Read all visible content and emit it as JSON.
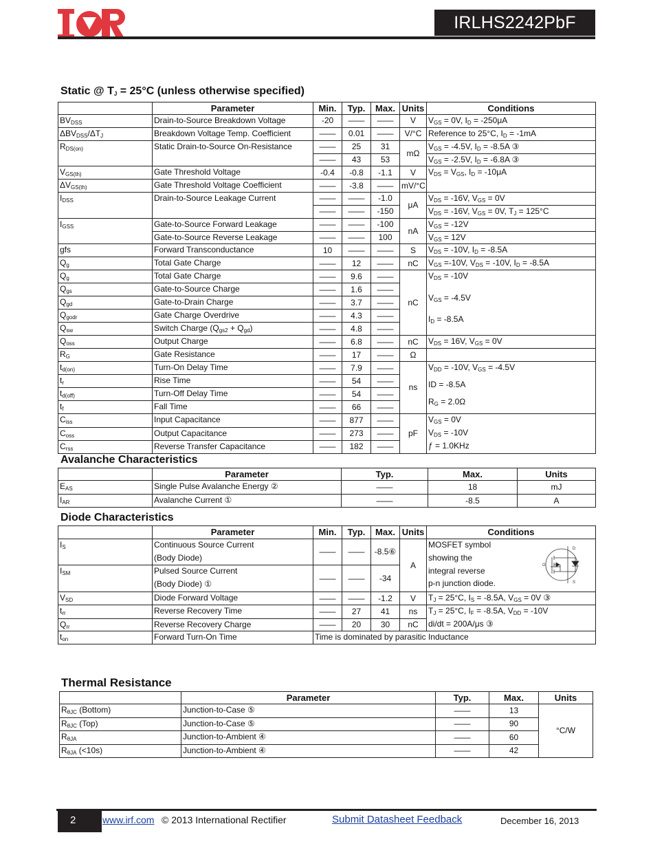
{
  "header": {
    "logo_text": "IOR",
    "part_number": "IRLHS2242PbF",
    "brand_color": "#e0383e"
  },
  "static": {
    "title": "Static @ T_{J} = 25°C (unless otherwise specified)",
    "columns": {
      "sym": "",
      "param": "Parameter",
      "min": "Min.",
      "typ": "Typ.",
      "max": "Max.",
      "units": "Units",
      "cond": "Conditions"
    },
    "rows": [
      {
        "sym": "BV_{DSS}",
        "param": "Drain-to-Source Breakdown Voltage",
        "min": "-20",
        "typ": "——",
        "max": "——",
        "units": "V",
        "cond": "V_{GS} = 0V, I_{D} = -250μA"
      },
      {
        "sym": "ΔBV_{DSS}/ΔT_{J}",
        "param": "Breakdown Voltage Temp. Coefficient",
        "min": "——",
        "typ": "0.01",
        "max": "——",
        "units": "V/°C",
        "cond": "Reference to 25°C, I_{D} = -1mA"
      },
      {
        "sym": "R_{DS(on)}",
        "param": "Static Drain-to-Source On-Resistance",
        "min": "——",
        "typ": "25",
        "max": "31",
        "units": "mΩ",
        "cond": "V_{GS} = -4.5V, I_{D} = -8.5A ③"
      },
      {
        "min": "——",
        "typ": "43",
        "max": "53",
        "cond": "V_{GS} = -2.5V, I_{D} = -6.8A ③"
      },
      {
        "sym": "V_{GS(th)}",
        "param": "Gate Threshold Voltage",
        "min": "-0.4",
        "typ": "-0.8",
        "max": "-1.1",
        "units": "V",
        "cond": "V_{DS} = V_{GS}, I_{D} = -10μA"
      },
      {
        "sym": "ΔV_{GS(th)}",
        "param": "Gate Threshold Voltage Coefficient",
        "min": "——",
        "typ": "-3.8",
        "max": "——",
        "units": "mV/°C"
      },
      {
        "sym": "I_{DSS}",
        "param": "Drain-to-Source Leakage Current",
        "min": "——",
        "typ": "——",
        "max": "-1.0",
        "units": "μA",
        "cond": "V_{DS} = -16V, V_{GS} = 0V"
      },
      {
        "min": "——",
        "typ": "——",
        "max": "-150",
        "cond": "V_{DS} = -16V, V_{GS} = 0V, T_{J} = 125°C"
      },
      {
        "sym": "I_{GSS}",
        "param": "Gate-to-Source Forward Leakage",
        "min": "——",
        "typ": "——",
        "max": "-100",
        "units": "nA",
        "cond": "V_{GS} = -12V"
      },
      {
        "param": "Gate-to-Source Reverse Leakage",
        "min": "——",
        "typ": "——",
        "max": "100",
        "cond": "V_{GS} = 12V"
      },
      {
        "sym": "gfs",
        "param": "Forward Transconductance",
        "min": "10",
        "typ": "——",
        "max": "——",
        "units": "S",
        "cond": "V_{DS} = -10V, I_{D} = -8.5A"
      },
      {
        "sym": "Q_{g}",
        "param": "Total Gate Charge",
        "min": "——",
        "typ": "12",
        "max": "——",
        "units": "nC",
        "cond": "V_{GS} =-10V, V_{DS} = -10V, I_{D} = -8.5A"
      },
      {
        "sym": "Q_{g}",
        "param": "Total Gate Charge",
        "min": "——",
        "typ": "9.6",
        "max": "——",
        "units": "nC",
        "cond": [
          "V_{DS} = -10V",
          "V_{GS} = -4.5V",
          "I_{D} = -8.5A"
        ]
      },
      {
        "sym": "Q_{gs}",
        "param": "Gate-to-Source Charge",
        "min": "——",
        "typ": "1.6",
        "max": "——"
      },
      {
        "sym": "Q_{gd}",
        "param": "Gate-to-Drain Charge",
        "min": "——",
        "typ": "3.7",
        "max": "——"
      },
      {
        "sym": "Q_{godr}",
        "param": "Gate Charge Overdrive",
        "min": "——",
        "typ": "4.3",
        "max": "——"
      },
      {
        "sym": "Q_{sw}",
        "param": "Switch Charge (Q_{gs2} + Q_{gd})",
        "min": "——",
        "typ": "4.8",
        "max": "——"
      },
      {
        "sym": "Q_{oss}",
        "param": "Output Charge",
        "min": "——",
        "typ": "6.8",
        "max": "——",
        "units": "nC",
        "cond": "V_{DS} = 16V, V_{GS} = 0V"
      },
      {
        "sym": "R_{G}",
        "param": "Gate Resistance",
        "min": "——",
        "typ": "17",
        "max": "——",
        "units": "Ω",
        "cond": ""
      },
      {
        "sym": "t_{d(on)}",
        "param": "Turn-On Delay Time",
        "min": "——",
        "typ": "7.9",
        "max": "——",
        "units": "ns",
        "cond": [
          "V_{DD} = -10V, V_{GS} = -4.5V",
          "ID = -8.5A",
          "R_{G} = 2.0Ω"
        ]
      },
      {
        "sym": "t_{r}",
        "param": "Rise Time",
        "min": "——",
        "typ": "54",
        "max": "——"
      },
      {
        "sym": "t_{d(off)}",
        "param": "Turn-Off Delay Time",
        "min": "——",
        "typ": "54",
        "max": "——"
      },
      {
        "sym": "t_{f}",
        "param": "Fall Time",
        "min": "——",
        "typ": "66",
        "max": "——"
      },
      {
        "sym": "C_{iss}",
        "param": "Input Capacitance",
        "min": "——",
        "typ": "877",
        "max": "——",
        "units": "pF",
        "cond": [
          "V_{GS} = 0V",
          "V_{DS} = -10V",
          "ƒ = 1.0KHz"
        ]
      },
      {
        "sym": "C_{oss}",
        "param": "Output Capacitance",
        "min": "——",
        "typ": "273",
        "max": "——"
      },
      {
        "sym": "C_{rss}",
        "param": "Reverse Transfer Capacitance",
        "min": "——",
        "typ": "182",
        "max": "——"
      }
    ]
  },
  "avalanche": {
    "title": "Avalanche Characteristics",
    "columns": {
      "sym": "",
      "param": "Parameter",
      "typ": "Typ.",
      "max": "Max.",
      "units": "Units"
    },
    "rows": [
      {
        "sym": "E_{AS}",
        "param": "Single Pulse Avalanche Energy ②",
        "typ": "——",
        "max": "18",
        "units": "mJ"
      },
      {
        "sym": "I_{AR}",
        "param": "Avalanche Current ①",
        "typ": "——",
        "max": "-8.5",
        "units": "A"
      }
    ]
  },
  "diode": {
    "title": "Diode Characteristics",
    "columns": {
      "sym": "",
      "param": "Parameter",
      "min": "Min.",
      "typ": "Typ.",
      "max": "Max.",
      "units": "Units",
      "cond": "Conditions"
    },
    "rows": [
      {
        "sym": "I_{S}",
        "param": [
          "Continuous Source Current",
          "(Body Diode)"
        ],
        "min": "——",
        "typ": "——",
        "max": "-8.5⑥",
        "units": "A",
        "cond": [
          "MOSFET symbol",
          "showing  the",
          "integral reverse",
          "p-n junction diode."
        ]
      },
      {
        "sym": "I_{SM}",
        "param": [
          "Pulsed Source Current",
          "(Body Diode)    ①"
        ],
        "min": "——",
        "typ": "——",
        "max": "-34"
      },
      {
        "sym": "V_{SD}",
        "param": "Diode Forward Voltage",
        "min": "——",
        "typ": "——",
        "max": "-1.2",
        "units": "V",
        "cond": "T_{J} = 25°C, I_{S} = -8.5A, V_{GS} = 0V ③"
      },
      {
        "sym": "t_{rr}",
        "param": "Reverse Recovery Time",
        "min": "——",
        "typ": "27",
        "max": "41",
        "units": "ns",
        "cond": [
          "T_{J} = 25°C, I_{F} = -8.5A, V_{DD} = -10V",
          "di/dt = 200A/μs ③"
        ]
      },
      {
        "sym": "Q_{rr}",
        "param": "Reverse Recovery Charge",
        "min": "——",
        "typ": "20",
        "max": "30",
        "units": "nC"
      },
      {
        "sym": "t_{on}",
        "param": "Forward Turn-On Time",
        "note": "Time is dominated by parasitic Inductance"
      }
    ],
    "symbol_labels": {
      "drain": "D",
      "gate": "G",
      "source": "S"
    }
  },
  "thermal": {
    "title": "Thermal Resistance",
    "columns": {
      "sym": "",
      "param": "Parameter",
      "typ": "Typ.",
      "max": "Max.",
      "units": "Units"
    },
    "rows": [
      {
        "sym": "R_{θJC} (Bottom)",
        "param": "Junction-to-Case ⑤",
        "typ": "——",
        "max": "13",
        "units": "°C/W"
      },
      {
        "sym": "R_{θJC} (Top)",
        "param": "Junction-to-Case ⑤",
        "typ": "——",
        "max": "90"
      },
      {
        "sym": "R_{θJA}",
        "param": "Junction-to-Ambient ④",
        "typ": "——",
        "max": "60"
      },
      {
        "sym": "R_{θJA} (<10s)",
        "param": "Junction-to-Ambient ④",
        "typ": "——",
        "max": "42"
      }
    ]
  },
  "footer": {
    "page": "2",
    "website": "www.irf.com",
    "copyright": "© 2013 International Rectifier",
    "feedback_link": "Submit Datasheet Feedback",
    "date": "December 16, 2013",
    "link_color": "#1a3fa0"
  }
}
